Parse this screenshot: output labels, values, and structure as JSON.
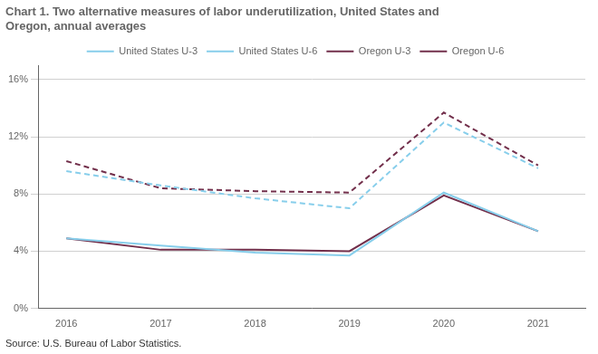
{
  "chart_data": {
    "type": "line",
    "title": [
      "Chart 1. Two alternative measures of labor underutilization, United States and",
      "Oregon, annual averages"
    ],
    "annotation": "Source: U.S. Bureau of Labor Statistics.",
    "x": [
      2016,
      2017,
      2018,
      2019,
      2020,
      2021
    ],
    "series": [
      {
        "name": "United States U-3",
        "color": "#87CEEB",
        "line_style": "solid",
        "values": [
          4.9,
          4.4,
          3.9,
          3.7,
          8.1,
          5.4
        ]
      },
      {
        "name": "United States U-6",
        "color": "#87CEEB",
        "line_style": "dashed",
        "values": [
          9.6,
          8.6,
          7.7,
          7.0,
          13.0,
          9.8
        ]
      },
      {
        "name": "Oregon U-3",
        "color": "#722F4B",
        "line_style": "solid",
        "values": [
          4.9,
          4.1,
          4.1,
          4.0,
          7.9,
          5.4
        ]
      },
      {
        "name": "Oregon U-6",
        "color": "#722F4B",
        "line_style": "dashed",
        "values": [
          10.3,
          8.4,
          8.2,
          8.1,
          13.7,
          10.0
        ]
      }
    ],
    "xlim": [
      2015.7,
      2021.5
    ],
    "xticks": [
      2016,
      2017,
      2018,
      2019,
      2020,
      2021
    ],
    "ylim": [
      0,
      17
    ],
    "yticks": [
      {
        "value": 0,
        "label": "0%"
      },
      {
        "value": 4,
        "label": "4%"
      },
      {
        "value": 8,
        "label": "8%"
      },
      {
        "value": 12,
        "label": "12%"
      },
      {
        "value": 16,
        "label": "16%"
      }
    ],
    "grid": "y",
    "legend": "top"
  }
}
